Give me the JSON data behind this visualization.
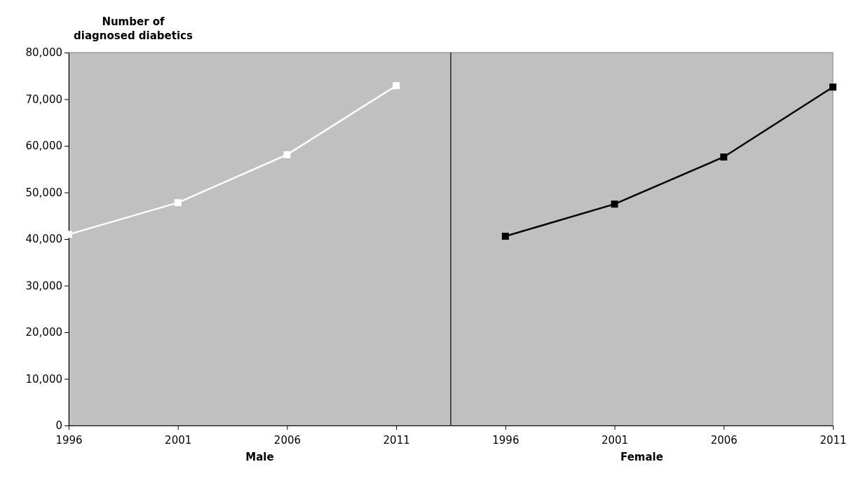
{
  "chart_data": [
    {
      "type": "line",
      "ylabel": "Number of diagnosed diabetics",
      "xlabel": "Male",
      "x": [
        1996,
        2001,
        2006,
        2011
      ],
      "xlim": [
        1996,
        2013.5
      ],
      "xticks": [
        1996,
        2001,
        2006,
        2011
      ],
      "ylim": [
        0,
        80000
      ],
      "yticks": [
        {
          "value": 0,
          "label": "0"
        },
        {
          "value": 10000,
          "label": "10,000"
        },
        {
          "value": 20000,
          "label": "20,000"
        },
        {
          "value": 30000,
          "label": "30,000"
        },
        {
          "value": 40000,
          "label": "40,000"
        },
        {
          "value": 50000,
          "label": "50,000"
        },
        {
          "value": 60000,
          "label": "60,000"
        },
        {
          "value": 70000,
          "label": "70,000"
        },
        {
          "value": 80000,
          "label": "80,000"
        }
      ],
      "marker": "square",
      "series": [
        {
          "color": "#ffffff",
          "values": [
            41000,
            47800,
            58100,
            72900
          ]
        }
      ]
    },
    {
      "type": "line",
      "xlabel": "Female",
      "x": [
        1996,
        2001,
        2006,
        2011
      ],
      "xlim": [
        1993.5,
        2011
      ],
      "xticks": [
        1996,
        2001,
        2006,
        2011
      ],
      "ylim": [
        0,
        80000
      ],
      "tick_labels": "x",
      "marker": "square",
      "series": [
        {
          "color": "#000000",
          "values": [
            40600,
            47500,
            57600,
            72600
          ]
        }
      ]
    }
  ]
}
